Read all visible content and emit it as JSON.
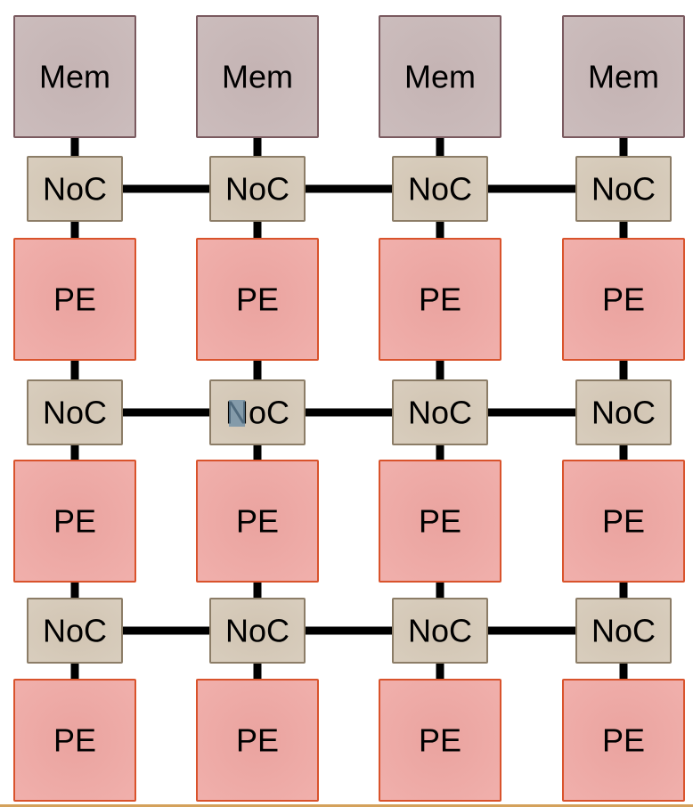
{
  "labels": {
    "memory": "Mem",
    "router": "NoC",
    "processing_element": "PE"
  },
  "grid": {
    "columns": 4,
    "memory_rows": 1,
    "noc_rows": 3,
    "pe_rows": 3
  },
  "colors": {
    "memory_fill": "#c9b9b9",
    "memory_stroke": "#7a5a5f",
    "noc_fill": "#d6cab9",
    "noc_stroke": "#8c7d67",
    "pe_fill": "#eeaaa6",
    "pe_stroke": "#d9532c",
    "link": "#000000",
    "selection_highlight": "#6a8ca6",
    "bottom_rule": "#d4a15b"
  }
}
